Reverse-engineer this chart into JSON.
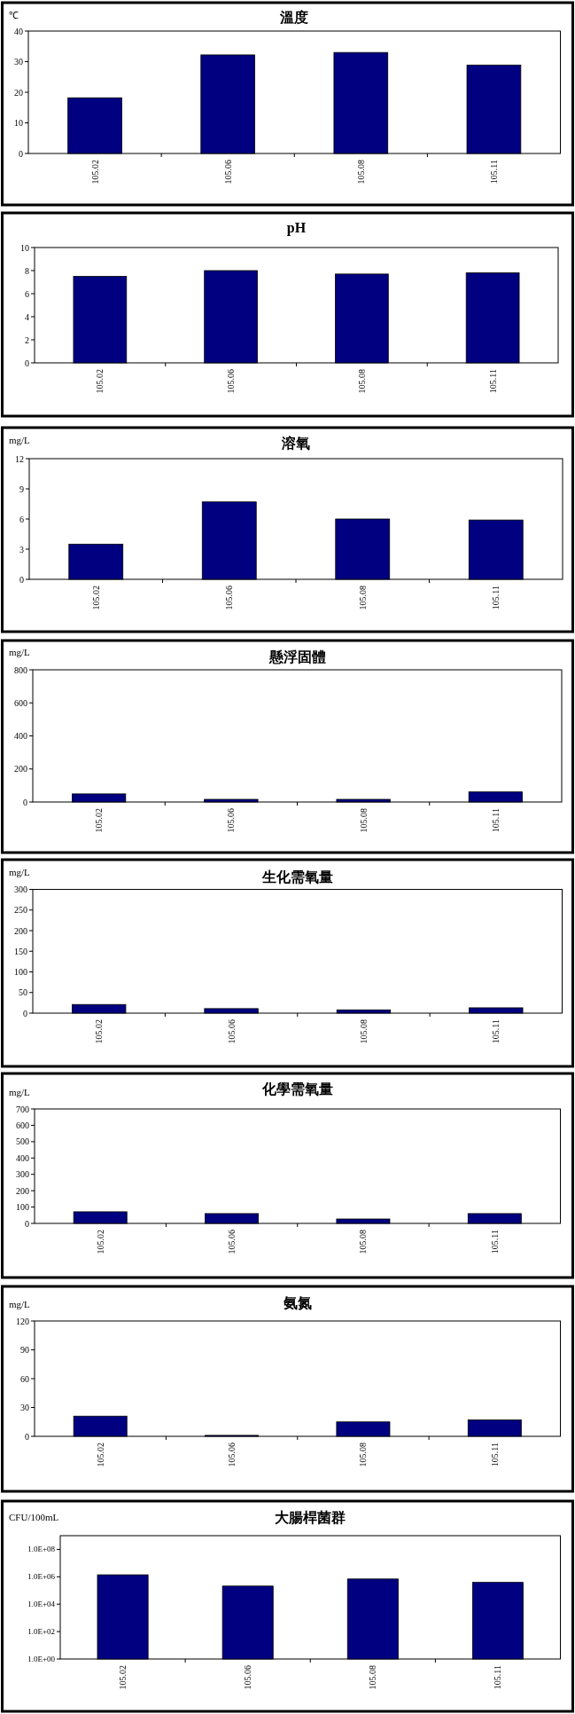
{
  "chart_data": [
    {
      "type": "bar",
      "title": "溫度",
      "ylabel": "℃",
      "categories": [
        "105.02",
        "105.06",
        "105.08",
        "105.11"
      ],
      "values": [
        18.2,
        32.2,
        33,
        28.9
      ],
      "color": "#000080",
      "ylim": [
        0,
        40
      ],
      "yticks": [
        0,
        10,
        20,
        30,
        40
      ]
    },
    {
      "type": "bar",
      "title": "pH",
      "categories": [
        "105.02",
        "105.06",
        "105.08",
        "105.11"
      ],
      "values": [
        7.5,
        8.0,
        7.7,
        7.8
      ],
      "color": "#000080",
      "ylim": [
        0,
        10
      ],
      "yticks": [
        0,
        2,
        4,
        6,
        8,
        10
      ]
    },
    {
      "type": "bar",
      "title": "溶氧",
      "ylabel": "mg/L",
      "categories": [
        "105.02",
        "105.06",
        "105.08",
        "105.11"
      ],
      "values": [
        3.5,
        7.7,
        6.0,
        5.9
      ],
      "color": "#000080",
      "ylim": [
        0,
        12
      ],
      "yticks": [
        0,
        3,
        6,
        9,
        12
      ]
    },
    {
      "type": "bar",
      "title": "懸浮固體",
      "ylabel": "mg/L",
      "categories": [
        "105.02",
        "105.06",
        "105.08",
        "105.11"
      ],
      "values": [
        49,
        16,
        16,
        61
      ],
      "color": "#000080",
      "ylim": [
        0,
        800
      ],
      "yticks": [
        0,
        200,
        400,
        600,
        800
      ]
    },
    {
      "type": "bar",
      "title": "生化需氧量",
      "ylabel": "mg/L",
      "categories": [
        "105.02",
        "105.06",
        "105.08",
        "105.11"
      ],
      "values": [
        21,
        11,
        8,
        13
      ],
      "color": "#000080",
      "ylim": [
        0,
        300
      ],
      "yticks": [
        0,
        50,
        100,
        150,
        200,
        250,
        300
      ]
    },
    {
      "type": "bar",
      "title": "化學需氧量",
      "ylabel": "mg/L",
      "categories": [
        "105.02",
        "105.06",
        "105.08",
        "105.11"
      ],
      "values": [
        71,
        60,
        27,
        60
      ],
      "color": "#000080",
      "ylim": [
        0,
        700
      ],
      "yticks": [
        0,
        100,
        200,
        300,
        400,
        500,
        600,
        700
      ]
    },
    {
      "type": "bar",
      "title": "氨氮",
      "ylabel": "mg/L",
      "categories": [
        "105.02",
        "105.06",
        "105.08",
        "105.11"
      ],
      "values": [
        21,
        1,
        15,
        17
      ],
      "color": "#000080",
      "ylim": [
        0,
        120
      ],
      "yticks": [
        0,
        30,
        60,
        90,
        120
      ]
    },
    {
      "type": "bar",
      "title": "大腸桿菌群",
      "ylabel": "CFU/100mL",
      "categories": [
        "105.02",
        "105.06",
        "105.08",
        "105.11"
      ],
      "values": [
        1400000,
        210000,
        690000,
        390000
      ],
      "color": "#000080",
      "log": true,
      "ylim": [
        1,
        1000000000
      ],
      "yticks": [
        {
          "value": 1,
          "label": "1.0E+00"
        },
        {
          "value": 100,
          "label": "1.0E+02"
        },
        {
          "value": 10000,
          "label": "1.0E+04"
        },
        {
          "value": 1000000,
          "label": "1.0E+06"
        },
        {
          "value": 100000000,
          "label": "1.0E+08"
        }
      ]
    }
  ]
}
